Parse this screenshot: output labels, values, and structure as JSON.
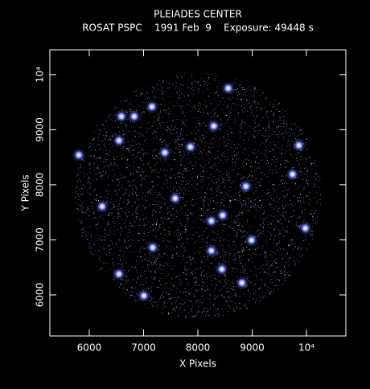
{
  "chart_data": {
    "type": "image",
    "title": "PLEIADES CENTER",
    "subtitle": "ROSAT PSPC    1991 Feb  9    Exposure: 49448 s",
    "x_label": "X Pixels",
    "y_label": "Y Pixels",
    "xlim": [
      5275,
      10725
    ],
    "ylim": [
      5255,
      10450
    ],
    "xticks": [
      6000,
      7000,
      8000,
      9000,
      {
        "value": 10000,
        "label": "10⁴"
      }
    ],
    "yticks": [
      6000,
      7000,
      8000,
      9000,
      {
        "value": 10000,
        "label": "10⁴"
      }
    ],
    "x": [
      8559,
      8293,
      8885,
      8811,
      6547,
      7390,
      7583,
      8249,
      8249,
      7169,
      7006,
      6547,
      6237,
      9743,
      9979,
      5808,
      6592,
      8441,
      8988,
      7864,
      6828,
      9861,
      7154,
      8456
    ],
    "y": [
      9752,
      9066,
      7971,
      6219,
      8803,
      8584,
      7752,
      7343,
      6803,
      6861,
      5985,
      6380,
      7606,
      8190,
      7212,
      8540,
      9241,
      6467,
      6993,
      8686,
      9241,
      8715,
      9416,
      7445
    ],
    "color": "#9fb4ff"
  }
}
